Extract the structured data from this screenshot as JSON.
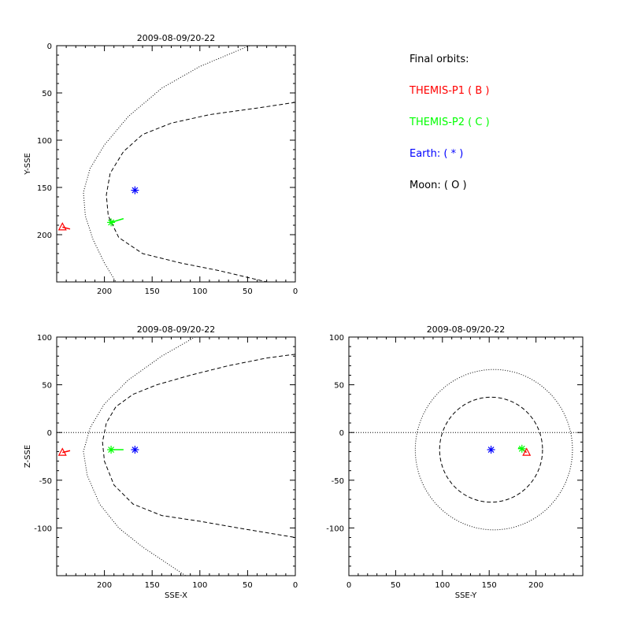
{
  "legend": {
    "title": "Final orbits:",
    "items": [
      {
        "label": "THEMIS-P1 ( B )",
        "color": "#ff0000"
      },
      {
        "label": "THEMIS-P2 ( C )",
        "color": "#00ff00"
      },
      {
        "label": "Earth: ( * )",
        "color": "#0000ff"
      },
      {
        "label": "Moon: ( O )",
        "color": "#000000"
      }
    ]
  },
  "chart_data": [
    {
      "type": "scatter",
      "title": "2009-08-09/20-22",
      "xlabel": "",
      "ylabel": "Y-SSE",
      "xlim": [
        250,
        0
      ],
      "ylim": [
        0,
        250
      ],
      "y_reversed": true,
      "xticks": [
        200,
        150,
        100,
        50,
        0
      ],
      "yticks": [
        0,
        50,
        100,
        150,
        200
      ],
      "earth": [
        168,
        153
      ],
      "p1": [
        244,
        192
      ],
      "p2": [
        193,
        187
      ],
      "p1_trail": [
        [
          244,
          192
        ],
        [
          236,
          194
        ]
      ],
      "p2_trail": [
        [
          193,
          187
        ],
        [
          180,
          183
        ]
      ],
      "bow_shock": [
        [
          48,
          0
        ],
        [
          100,
          22
        ],
        [
          140,
          45
        ],
        [
          175,
          75
        ],
        [
          200,
          105
        ],
        [
          215,
          130
        ],
        [
          222,
          155
        ],
        [
          220,
          180
        ],
        [
          212,
          205
        ],
        [
          200,
          230
        ],
        [
          188,
          250
        ]
      ],
      "magnetopause": [
        [
          0,
          60
        ],
        [
          40,
          66
        ],
        [
          90,
          73
        ],
        [
          130,
          82
        ],
        [
          160,
          94
        ],
        [
          180,
          112
        ],
        [
          194,
          135
        ],
        [
          198,
          158
        ],
        [
          196,
          180
        ],
        [
          185,
          203
        ],
        [
          160,
          220
        ],
        [
          120,
          230
        ],
        [
          80,
          238
        ],
        [
          30,
          250
        ]
      ],
      "zero_line": 0
    },
    {
      "type": "scatter",
      "title": "2009-08-09/20-22",
      "xlabel": "SSE-X",
      "ylabel": "Z-SSE",
      "xlim": [
        250,
        0
      ],
      "ylim": [
        -150,
        100
      ],
      "xticks": [
        200,
        150,
        100,
        50,
        0
      ],
      "yticks": [
        100,
        50,
        0,
        -50,
        -100
      ],
      "earth": [
        168,
        -18
      ],
      "p1": [
        244,
        -21
      ],
      "p2": [
        193,
        -18
      ],
      "p1_trail": [
        [
          244,
          -21
        ],
        [
          236,
          -19
        ]
      ],
      "p2_trail": [
        [
          193,
          -18
        ],
        [
          180,
          -18
        ]
      ],
      "bow_shock": [
        [
          105,
          100
        ],
        [
          140,
          80
        ],
        [
          175,
          55
        ],
        [
          200,
          30
        ],
        [
          215,
          5
        ],
        [
          222,
          -20
        ],
        [
          218,
          -45
        ],
        [
          205,
          -75
        ],
        [
          185,
          -100
        ],
        [
          160,
          -120
        ],
        [
          130,
          -140
        ],
        [
          115,
          -150
        ]
      ],
      "magnetopause": [
        [
          0,
          82
        ],
        [
          30,
          78
        ],
        [
          70,
          70
        ],
        [
          110,
          60
        ],
        [
          145,
          50
        ],
        [
          170,
          40
        ],
        [
          188,
          27
        ],
        [
          198,
          10
        ],
        [
          202,
          -10
        ],
        [
          200,
          -30
        ],
        [
          190,
          -55
        ],
        [
          170,
          -75
        ],
        [
          140,
          -87
        ],
        [
          100,
          -93
        ],
        [
          60,
          -100
        ],
        [
          0,
          -110
        ]
      ],
      "zero_line": 0
    },
    {
      "type": "scatter",
      "title": "2009-08-09/20-22",
      "xlabel": "SSE-Y",
      "ylabel": "",
      "xlim": [
        0,
        250
      ],
      "ylim": [
        -150,
        100
      ],
      "xticks": [
        0,
        50,
        100,
        150,
        200
      ],
      "yticks": [
        100,
        50,
        0,
        -50,
        -100
      ],
      "earth": [
        152,
        -18
      ],
      "p1": [
        190,
        -21
      ],
      "p2": [
        185,
        -17
      ],
      "p1_trail": [
        [
          190,
          -21
        ],
        [
          186,
          -18
        ]
      ],
      "p2_trail": [
        [
          185,
          -17
        ],
        [
          181,
          -16
        ]
      ],
      "outer_circle": {
        "cx": 155,
        "cy": -18,
        "r": 84
      },
      "inner_circle": {
        "cx": 152,
        "cy": -18,
        "r": 55
      },
      "zero_line": 0
    }
  ]
}
